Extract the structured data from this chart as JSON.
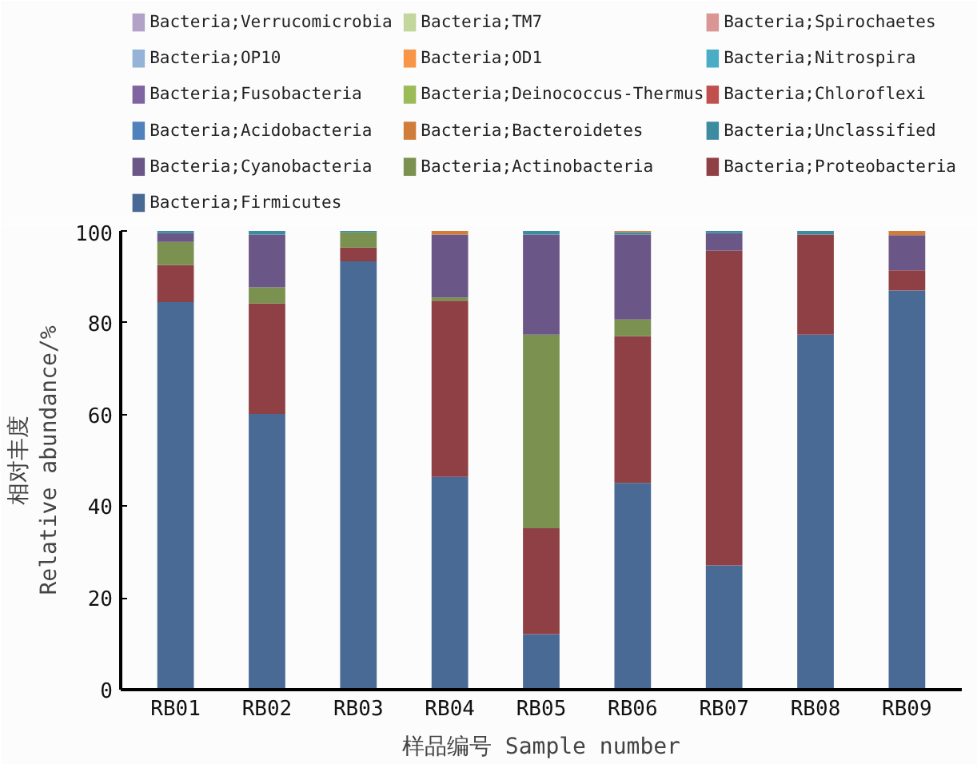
{
  "chart_data": {
    "type": "bar",
    "stacked": true,
    "xlabel": "样品编号 Sample number",
    "ylabel": "相对丰度\nRelative abundance/%",
    "categories": [
      "RB01",
      "RB02",
      "RB03",
      "RB04",
      "RB05",
      "RB06",
      "RB07",
      "RB08",
      "RB09"
    ],
    "ylim": [
      0,
      100
    ],
    "yticks": [
      0,
      20,
      40,
      60,
      80,
      100
    ],
    "grid": false,
    "legend": "top",
    "series": [
      {
        "name": "Bacteria;Firmicutes",
        "color": "#496a95",
        "values": [
          84.5,
          60.1,
          93.4,
          46.4,
          12.1,
          45.1,
          27.1,
          77.4,
          87.0
        ]
      },
      {
        "name": "Bacteria;Proteobacteria",
        "color": "#8e4044",
        "values": [
          8.1,
          24.1,
          3.0,
          38.4,
          23.1,
          32.0,
          68.6,
          21.8,
          4.4
        ]
      },
      {
        "name": "Bacteria;Actinobacteria",
        "color": "#7a9150",
        "values": [
          5.0,
          3.5,
          3.3,
          0.7,
          42.2,
          3.6,
          0,
          0,
          0
        ]
      },
      {
        "name": "Bacteria;Cyanobacteria",
        "color": "#6b5688",
        "values": [
          1.9,
          11.5,
          0,
          13.7,
          21.8,
          18.5,
          3.8,
          0,
          7.7
        ]
      },
      {
        "name": "Bacteria;Unclassified",
        "color": "#3d8ba0",
        "values": [
          0.5,
          0.8,
          0.3,
          0,
          0.8,
          0.5,
          0.5,
          0.8,
          0
        ]
      },
      {
        "name": "Bacteria;Bacteroidetes",
        "color": "#d17d3a",
        "values": [
          0,
          0,
          0,
          0.8,
          0,
          0.3,
          0,
          0,
          0.9
        ]
      },
      {
        "name": "Bacteria;Acidobacteria",
        "color": "#4f81bd",
        "values": [
          0,
          0,
          0,
          0,
          0,
          0,
          0,
          0,
          0
        ]
      },
      {
        "name": "Bacteria;Chloroflexi",
        "color": "#c0504d",
        "values": [
          0,
          0,
          0,
          0,
          0,
          0,
          0,
          0,
          0
        ]
      },
      {
        "name": "Bacteria;Deinococcus-Thermus",
        "color": "#9bbb59",
        "values": [
          0,
          0,
          0,
          0,
          0,
          0,
          0,
          0,
          0
        ]
      },
      {
        "name": "Bacteria;Fusobacteria",
        "color": "#8064a2",
        "values": [
          0,
          0,
          0,
          0,
          0,
          0,
          0,
          0,
          0
        ]
      },
      {
        "name": "Bacteria;Nitrospira",
        "color": "#4bacc6",
        "values": [
          0,
          0,
          0,
          0,
          0,
          0,
          0,
          0,
          0
        ]
      },
      {
        "name": "Bacteria;OD1",
        "color": "#f79646",
        "values": [
          0,
          0,
          0,
          0,
          0,
          0,
          0,
          0,
          0
        ]
      },
      {
        "name": "Bacteria;OP10",
        "color": "#95b3d7",
        "values": [
          0,
          0,
          0,
          0,
          0,
          0,
          0,
          0,
          0
        ]
      },
      {
        "name": "Bacteria;Spirochaetes",
        "color": "#d99694",
        "values": [
          0,
          0,
          0,
          0,
          0,
          0,
          0,
          0,
          0
        ]
      },
      {
        "name": "Bacteria;TM7",
        "color": "#c3d69b",
        "values": [
          0,
          0,
          0,
          0,
          0,
          0,
          0,
          0,
          0
        ]
      },
      {
        "name": "Bacteria;Verrucomicrobia",
        "color": "#b3a2c7",
        "values": [
          0,
          0,
          0,
          0,
          0,
          0,
          0,
          0,
          0
        ]
      }
    ]
  }
}
